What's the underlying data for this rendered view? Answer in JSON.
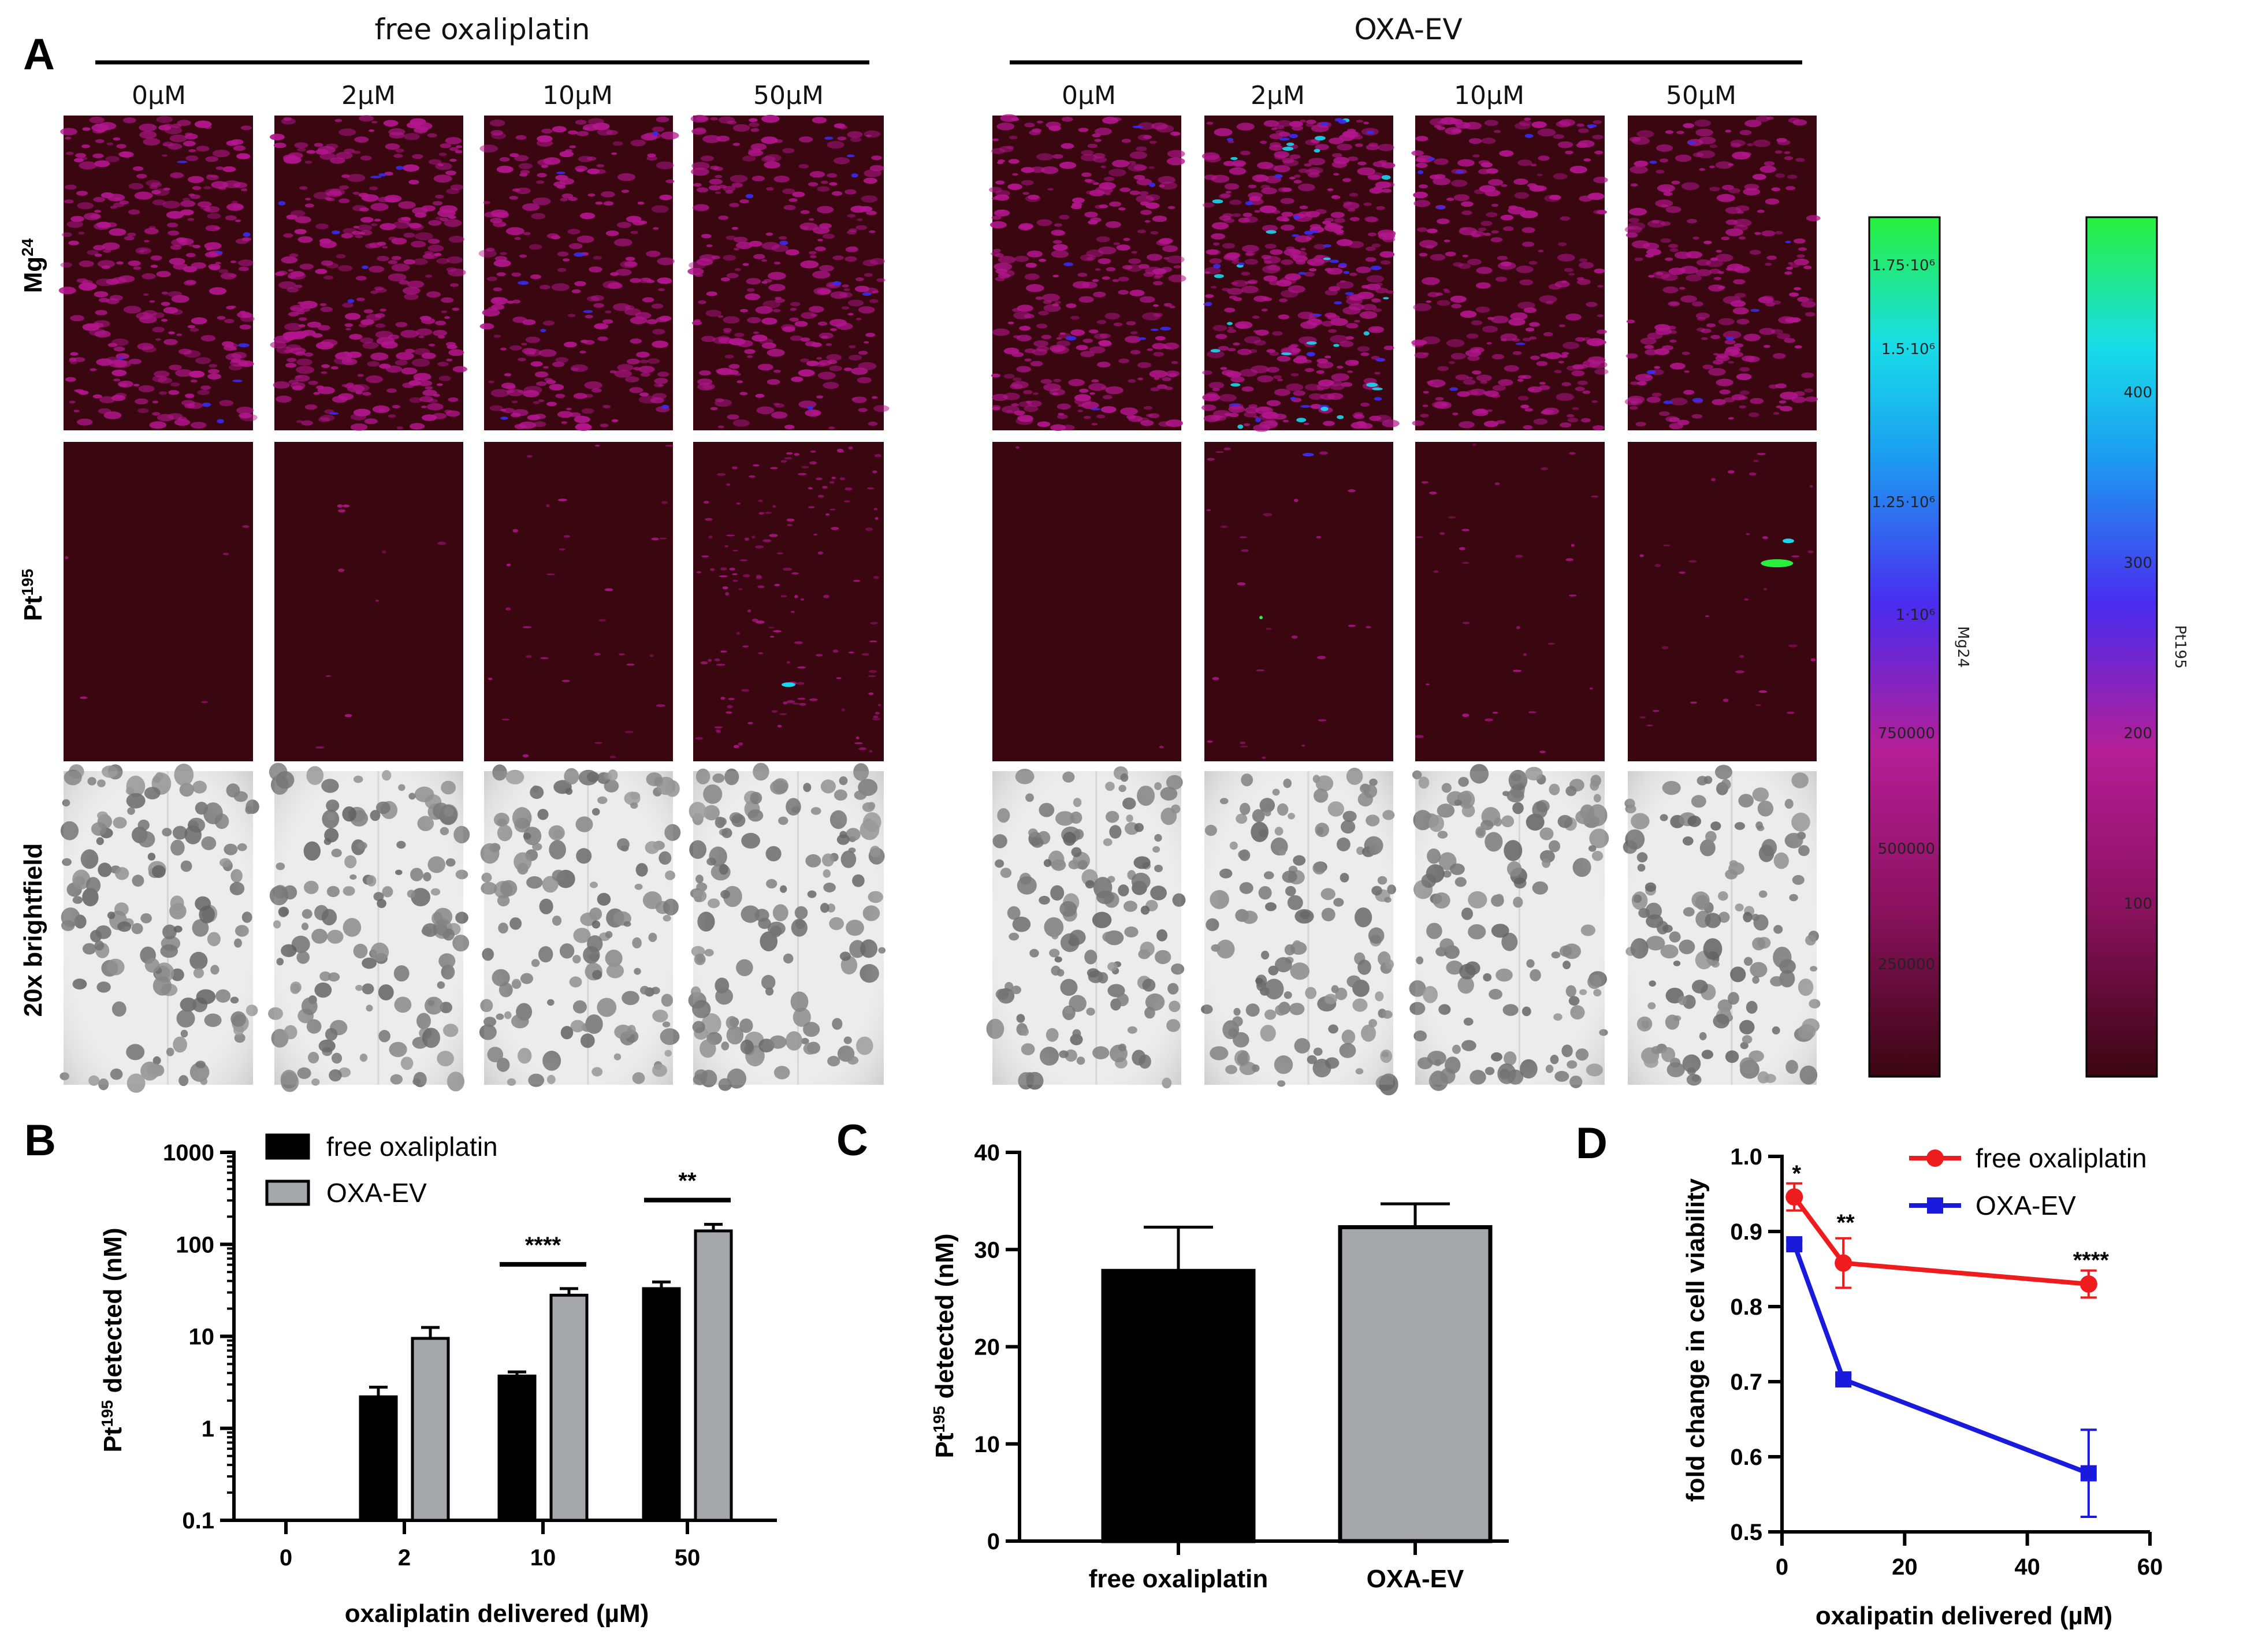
{
  "panel_labels": {
    "A": "A",
    "B": "B",
    "C": "C",
    "D": "D"
  },
  "panelA": {
    "groups": [
      "free oxaliplatin",
      "OXA-EV"
    ],
    "concentrations": [
      "0µM",
      "2µM",
      "10µM",
      "50µM"
    ],
    "rows": {
      "mg_base": "Mg",
      "mg_sup": "24",
      "pt_base": "Pt",
      "pt_sup": "195",
      "bf": "20x brightfield"
    },
    "colorbar_mg": {
      "label": "Mg24",
      "ticks": [
        "1.75·10⁶",
        "1.5·10⁶",
        "1.25·10⁶",
        "1·10⁶",
        "750000",
        "500000",
        "250000"
      ]
    },
    "colorbar_pt": {
      "label": "Pt195",
      "ticks": [
        "400",
        "300",
        "200",
        "100"
      ]
    },
    "colors": {
      "bg": "#3a0610",
      "magenta": "#b4168e",
      "blue": "#3a2cf0",
      "cyan": "#19d7ee",
      "green": "#27ef3c"
    }
  },
  "chart_data": [
    {
      "id": "B",
      "type": "bar",
      "yscale": "log",
      "categories": [
        "0",
        "2",
        "10",
        "50"
      ],
      "series": [
        {
          "name": "free oxaliplatin",
          "color": "#000000",
          "values": [
            null,
            2.2,
            3.7,
            33
          ],
          "errors": [
            null,
            0.6,
            0.4,
            6
          ]
        },
        {
          "name": "OXA-EV",
          "color": "#a6a7aa",
          "values": [
            null,
            9.5,
            28,
            140
          ],
          "errors": [
            null,
            3,
            5,
            25
          ]
        }
      ],
      "ylim": [
        0.1,
        1000
      ],
      "yticks": [
        "0.1",
        "1",
        "10",
        "100",
        "1000"
      ],
      "ylabel_base": "Pt",
      "ylabel_sup": "195",
      "ylabel_rest": " detected  (nM)",
      "xlabel": "oxaliplatin delivered (µM)",
      "significance": [
        {
          "category": "10",
          "label": "****"
        },
        {
          "category": "50",
          "label": "**"
        }
      ]
    },
    {
      "id": "C",
      "type": "bar",
      "categories": [
        "free oxaliplatin",
        "OXA-EV"
      ],
      "values": [
        27.8,
        32.3
      ],
      "errors": [
        4.5,
        2.4
      ],
      "colors": [
        "#000000",
        "#a6a7aa"
      ],
      "ylim": [
        0,
        40
      ],
      "yticks": [
        "0",
        "10",
        "20",
        "30",
        "40"
      ],
      "ylabel_base": "Pt",
      "ylabel_sup": "195",
      "ylabel_rest": " detected (nM)"
    },
    {
      "id": "D",
      "type": "line",
      "series": [
        {
          "name": "free oxaliplatin",
          "color": "#ee1c1c",
          "marker": "circle",
          "x": [
            2,
            10,
            50
          ],
          "y": [
            0.946,
            0.858,
            0.83
          ],
          "err": [
            0.018,
            0.033,
            0.018
          ]
        },
        {
          "name": "OXA-EV",
          "color": "#1a1adc",
          "marker": "square",
          "x": [
            2,
            10,
            50
          ],
          "y": [
            0.883,
            0.703,
            0.578
          ],
          "err": [
            0.005,
            0.006,
            0.058
          ]
        }
      ],
      "xlim": [
        0,
        60
      ],
      "ylim": [
        0.5,
        1.0
      ],
      "xticks": [
        "0",
        "20",
        "40",
        "60"
      ],
      "yticks": [
        "0.5",
        "0.6",
        "0.7",
        "0.8",
        "0.9",
        "1.0"
      ],
      "xlabel": "oxalipatin delivered (µM)",
      "ylabel": "fold change in cell viability",
      "significance": [
        {
          "x": 2,
          "label": "*"
        },
        {
          "x": 10,
          "label": "**"
        },
        {
          "x": 50,
          "label": "****"
        }
      ]
    }
  ]
}
